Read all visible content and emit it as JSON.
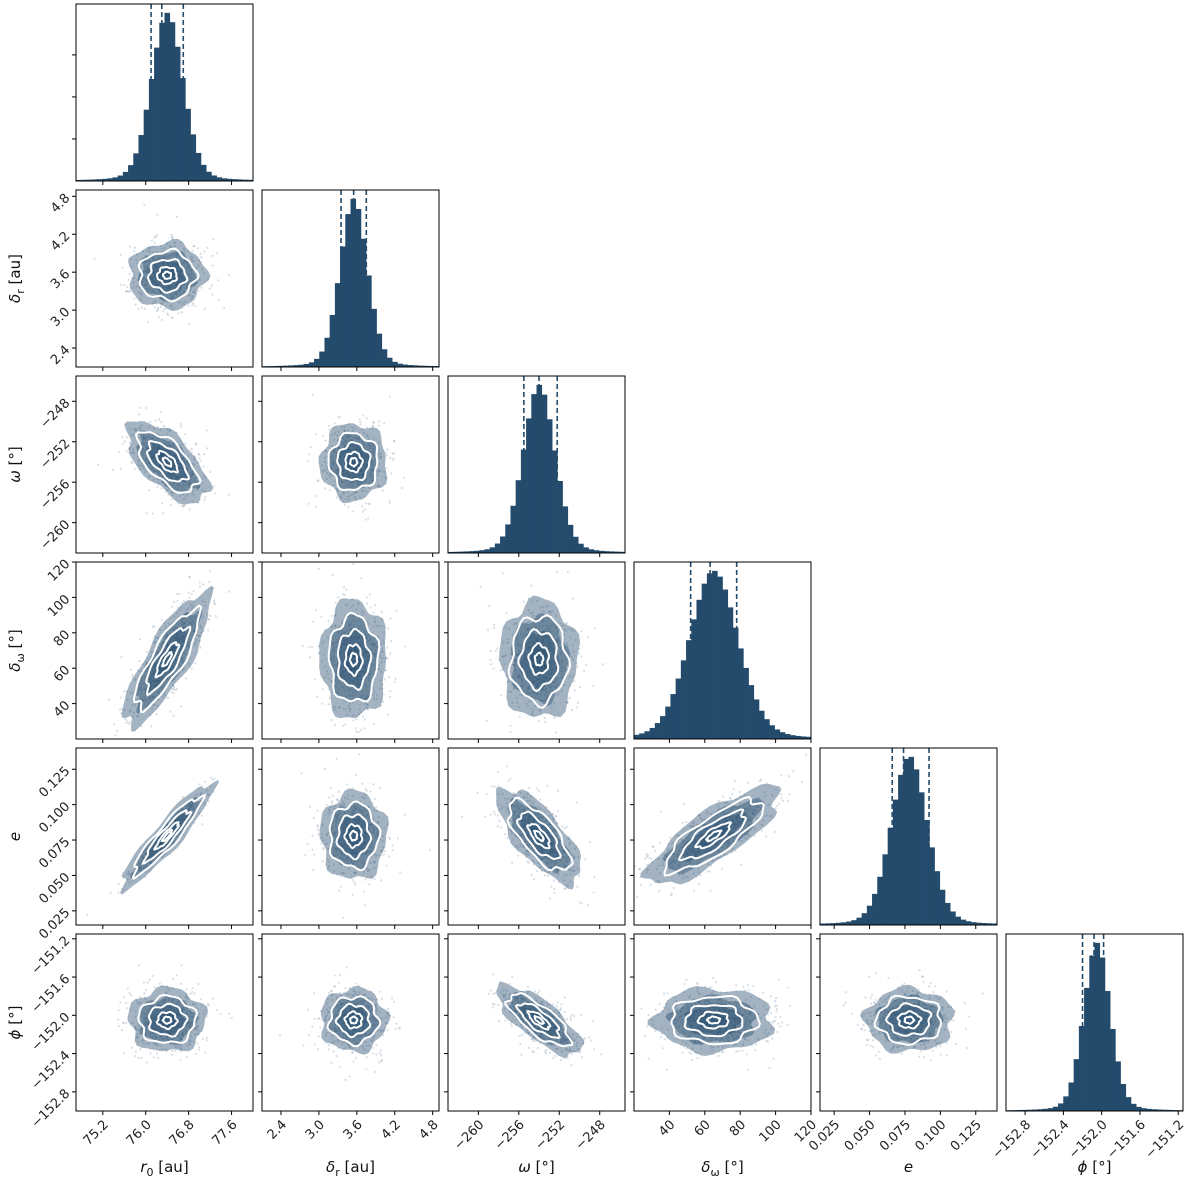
{
  "chart_data": {
    "type": "corner",
    "colors": {
      "fill": "#244b6b",
      "scatter": "#6f8aa3",
      "contour": "#ffffff",
      "frame": "#000000"
    },
    "quantiles": [
      0.16,
      0.5,
      0.84
    ],
    "params": [
      {
        "key": "r0",
        "sym": "r",
        "sub": "0",
        "unit": "[au]",
        "label": "r_0 [au]",
        "range": [
          74.7,
          78.0
        ],
        "mean": 76.4,
        "sd": 0.3,
        "q": [
          76.1,
          76.3,
          76.7
        ],
        "ticks": [
          75.2,
          76.0,
          76.8,
          77.6
        ],
        "tick_labels": [
          "75.2",
          "76.0",
          "76.8",
          "77.6"
        ]
      },
      {
        "key": "dr",
        "sym": "δ",
        "sub": "r",
        "unit": "[au]",
        "label": "δ_r [au]",
        "range": [
          2.1,
          4.9
        ],
        "mean": 3.55,
        "sd": 0.22,
        "q": [
          3.35,
          3.55,
          3.75
        ],
        "ticks": [
          2.4,
          3.0,
          3.6,
          4.2,
          4.8
        ],
        "tick_labels": [
          "2.4",
          "3.0",
          "3.6",
          "4.2",
          "4.8"
        ]
      },
      {
        "key": "omega",
        "sym": "ω",
        "sub": "",
        "unit": "[°]",
        "label": "ω [°]",
        "range": [
          -263.0,
          -245.5
        ],
        "mean": -254.0,
        "sd": 1.6,
        "q": [
          -255.5,
          -254.0,
          -252.2
        ],
        "ticks": [
          -260,
          -256,
          -252,
          -248
        ],
        "tick_labels": [
          "−260",
          "−256",
          "−252",
          "−248"
        ]
      },
      {
        "key": "domega",
        "sym": "δ",
        "sub": "ω",
        "unit": "[°]",
        "label": "δ_ω [°]",
        "range": [
          20,
          120
        ],
        "mean": 65,
        "sd": 14,
        "q": [
          52,
          63,
          78
        ],
        "ticks": [
          40,
          60,
          80,
          100,
          120
        ],
        "tick_labels": [
          "40",
          "60",
          "80",
          "100",
          "120"
        ]
      },
      {
        "key": "e",
        "sym": "e",
        "sub": "",
        "unit": "",
        "label": "e",
        "range": [
          0.015,
          0.14
        ],
        "mean": 0.078,
        "sd": 0.013,
        "q": [
          0.066,
          0.074,
          0.092
        ],
        "ticks": [
          0.025,
          0.05,
          0.075,
          0.1,
          0.125
        ],
        "tick_labels": [
          "0.025",
          "0.050",
          "0.075",
          "0.100",
          "0.125"
        ]
      },
      {
        "key": "phi",
        "sym": "ϕ",
        "sub": "",
        "unit": "[°]",
        "label": "ϕ [°]",
        "range": [
          -153.0,
          -151.15
        ],
        "mean": -152.05,
        "sd": 0.14,
        "q": [
          -152.2,
          -152.08,
          -151.98
        ],
        "ticks": [
          -152.8,
          -152.4,
          -152.0,
          -151.6,
          -151.2
        ],
        "tick_labels": [
          "−152.8",
          "−152.4",
          "−152.0",
          "−151.6",
          "−151.2"
        ]
      }
    ],
    "correlations": [
      {
        "pair": [
          "r0",
          "dr"
        ],
        "rho": 0.0
      },
      {
        "pair": [
          "r0",
          "omega"
        ],
        "rho": -0.5
      },
      {
        "pair": [
          "dr",
          "omega"
        ],
        "rho": 0.0
      },
      {
        "pair": [
          "r0",
          "domega"
        ],
        "rho": 0.75
      },
      {
        "pair": [
          "dr",
          "domega"
        ],
        "rho": 0.0
      },
      {
        "pair": [
          "omega",
          "domega"
        ],
        "rho": 0.0
      },
      {
        "pair": [
          "r0",
          "e"
        ],
        "rho": 0.95
      },
      {
        "pair": [
          "dr",
          "e"
        ],
        "rho": 0.0
      },
      {
        "pair": [
          "omega",
          "e"
        ],
        "rho": -0.6
      },
      {
        "pair": [
          "domega",
          "e"
        ],
        "rho": 0.72
      },
      {
        "pair": [
          "r0",
          "phi"
        ],
        "rho": 0.0
      },
      {
        "pair": [
          "dr",
          "phi"
        ],
        "rho": 0.0
      },
      {
        "pair": [
          "omega",
          "phi"
        ],
        "rho": -0.65
      },
      {
        "pair": [
          "domega",
          "phi"
        ],
        "rho": 0.0
      },
      {
        "pair": [
          "e",
          "phi"
        ],
        "rho": 0.0
      }
    ]
  }
}
